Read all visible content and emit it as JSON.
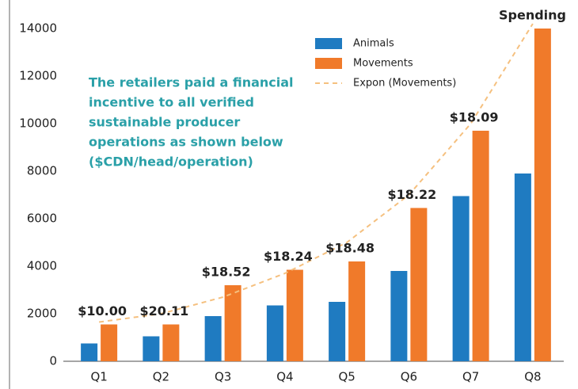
{
  "chart_data": {
    "type": "bar",
    "y_label": "Spending",
    "note_lines": [
      "The retailers paid a financial",
      "incentive to all verified",
      "sustainable producer",
      "operations as shown below",
      "($CDN/head/operation)"
    ],
    "categories": [
      "Q1",
      "Q2",
      "Q3",
      "Q4",
      "Q5",
      "Q6",
      "Q7",
      "Q8"
    ],
    "series": [
      {
        "name": "Animals",
        "color": "#1f7bc1",
        "values": [
          750,
          1050,
          1900,
          2350,
          2500,
          3800,
          6950,
          7900
        ]
      },
      {
        "name": "Movements",
        "color": "#f07a2a",
        "values": [
          1550,
          1550,
          3200,
          3850,
          4200,
          6450,
          9700,
          14000
        ]
      },
      {
        "name": "Expon (Movements)",
        "color": "#f5c07f",
        "style": "dashed",
        "values": [
          1650,
          2000,
          2700,
          3700,
          5000,
          7000,
          10000,
          14200
        ]
      }
    ],
    "annotations": [
      "$10.00",
      "$20.11",
      "$18.52",
      "$18.24",
      "$18.48",
      "$18.22",
      "$18.09",
      null
    ],
    "ylim": [
      0,
      14000
    ],
    "yticks": [
      0,
      2000,
      4000,
      6000,
      8000,
      10000,
      12000,
      14000
    ],
    "grid": false
  }
}
